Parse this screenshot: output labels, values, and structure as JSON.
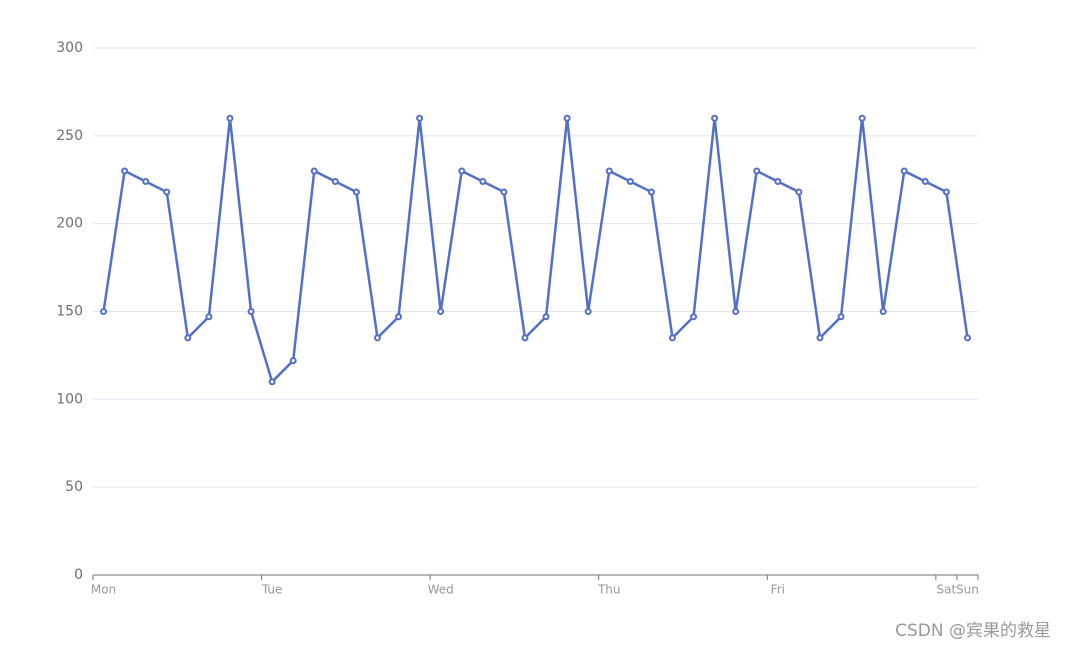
{
  "chart_data": {
    "type": "line",
    "categories": [
      "Mon",
      null,
      null,
      null,
      null,
      null,
      null,
      null,
      "Tue",
      null,
      null,
      null,
      null,
      null,
      null,
      null,
      "Wed",
      null,
      null,
      null,
      null,
      null,
      null,
      null,
      "Thu",
      null,
      null,
      null,
      null,
      null,
      null,
      null,
      "Fri",
      null,
      null,
      null,
      null,
      null,
      null,
      null,
      "Sat",
      "Sun"
    ],
    "values": [
      150,
      230,
      224,
      218,
      135,
      147,
      260,
      150,
      110,
      122,
      230,
      224,
      218,
      135,
      147,
      260,
      150,
      230,
      224,
      218,
      135,
      147,
      260,
      150,
      230,
      224,
      218,
      135,
      147,
      260,
      150,
      230,
      224,
      218,
      135,
      147,
      260,
      150,
      230,
      224,
      218,
      135
    ],
    "color": "#5470c6",
    "ylim": [
      0,
      300
    ],
    "yticks": [
      0,
      50,
      100,
      150,
      200,
      250,
      300
    ],
    "grid": true
  },
  "watermark": "CSDN @宾果的救星"
}
